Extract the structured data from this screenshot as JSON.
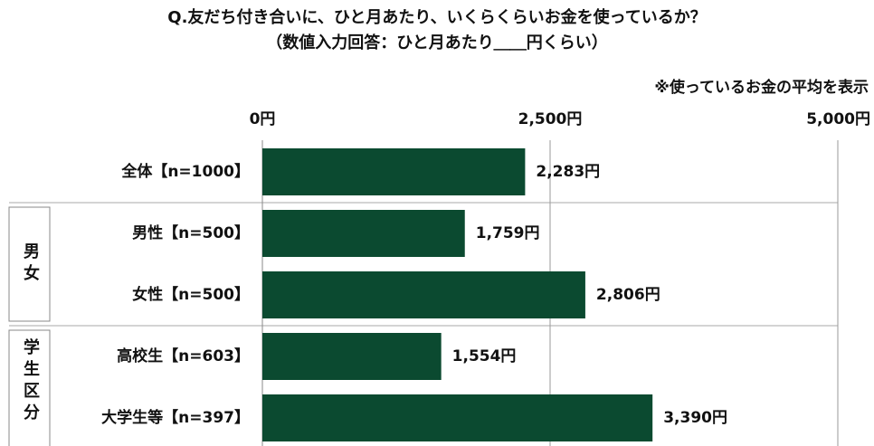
{
  "chart_data": {
    "type": "bar",
    "orientation": "horizontal",
    "title": "Q.友だち付き合いに、ひと月あたり、いくらくらいお金を使っているか？",
    "subtitle": "（数値入力回答：ひと月あたり＿＿円くらい）",
    "note": "※使っているお金の平均を表示",
    "categories": [
      "全体【n=1000】",
      "男性【n=500】",
      "女性【n=500】",
      "高校生【n=603】",
      "大学生等【n=397】"
    ],
    "values": [
      2283,
      1759,
      2806,
      1554,
      3390
    ],
    "value_labels": [
      "2,283円",
      "1,759円",
      "2,806円",
      "1,554円",
      "3,390円"
    ],
    "groups": [
      "男女",
      "学生区分"
    ],
    "color": "#0b4a30",
    "xlim": [
      0,
      5000
    ],
    "xticks": [
      {
        "value": 0,
        "label": "0円"
      },
      {
        "value": 2500,
        "label": "2,500円"
      },
      {
        "value": 5000,
        "label": "5,000円"
      }
    ],
    "grid": true
  }
}
